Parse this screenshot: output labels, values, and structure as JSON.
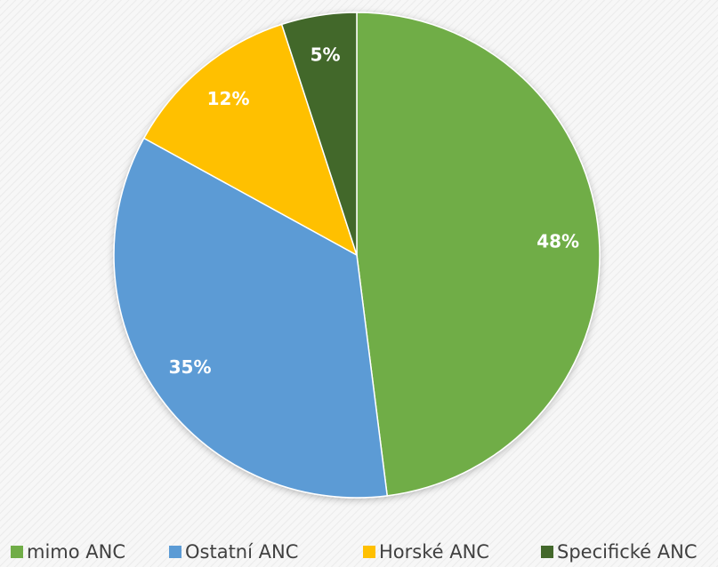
{
  "chart_data": {
    "type": "pie",
    "categories": [
      "mimo ANC",
      "Ostatní ANC",
      "Horské ANC",
      "Specifické ANC"
    ],
    "values": [
      48,
      35,
      12,
      5
    ],
    "value_labels": [
      "48%",
      "35%",
      "12%",
      "5%"
    ],
    "colors": [
      "#70ad47",
      "#5b9bd5",
      "#ffc000",
      "#43682b"
    ],
    "legend": "bottom"
  }
}
